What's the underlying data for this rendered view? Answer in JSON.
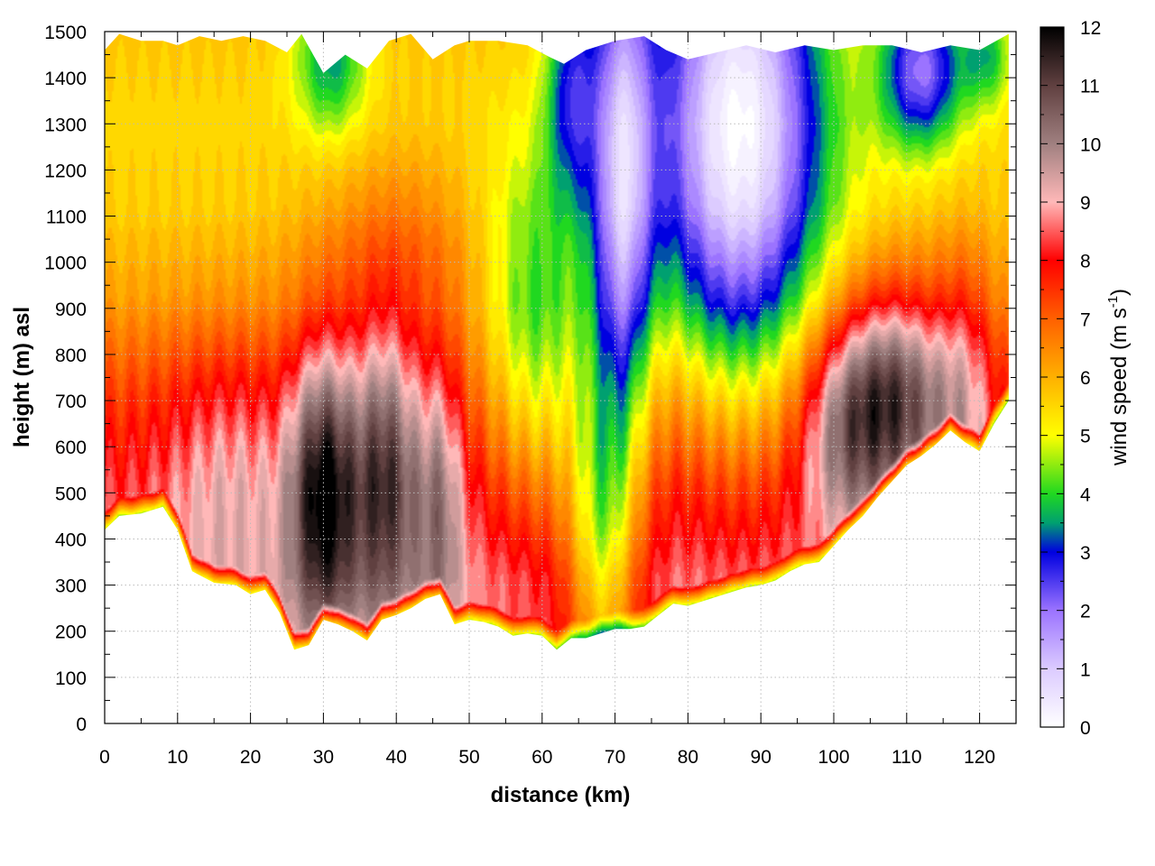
{
  "chart_data": {
    "type": "heatmap",
    "title": "",
    "xlabel": "distance (km)",
    "ylabel": "height (m) asl",
    "xlim": [
      0,
      125
    ],
    "ylim": [
      0,
      1500
    ],
    "x_ticks": [
      "0",
      "10",
      "20",
      "30",
      "40",
      "50",
      "60",
      "70",
      "80",
      "90",
      "100",
      "110",
      "120"
    ],
    "y_ticks": [
      "0",
      "100",
      "200",
      "300",
      "400",
      "500",
      "600",
      "700",
      "800",
      "900",
      "1000",
      "1100",
      "1200",
      "1300",
      "1400",
      "1500"
    ],
    "grid": true,
    "colorbar": {
      "title_main": "wind speed (m s",
      "title_sup": "-1",
      "title_close": ")",
      "range": [
        0,
        12
      ],
      "ticks": [
        "0",
        "1",
        "2",
        "3",
        "4",
        "5",
        "6",
        "7",
        "8",
        "9",
        "10",
        "11",
        "12"
      ],
      "stops": [
        {
          "v": 0,
          "c": "#ffffff"
        },
        {
          "v": 1,
          "c": "#dccbff"
        },
        {
          "v": 2,
          "c": "#9b73ff"
        },
        {
          "v": 3,
          "c": "#0000e0"
        },
        {
          "v": 3.5,
          "c": "#00a070"
        },
        {
          "v": 4,
          "c": "#20d820"
        },
        {
          "v": 5,
          "c": "#ffff00"
        },
        {
          "v": 6,
          "c": "#ffb000"
        },
        {
          "v": 7,
          "c": "#ff6000"
        },
        {
          "v": 8,
          "c": "#ff0000"
        },
        {
          "v": 9,
          "c": "#ffb8b8"
        },
        {
          "v": 10,
          "c": "#a08080"
        },
        {
          "v": 11,
          "c": "#604040"
        },
        {
          "v": 12,
          "c": "#000000"
        }
      ]
    },
    "terrain_m": [
      [
        0,
        420
      ],
      [
        2,
        450
      ],
      [
        5,
        455
      ],
      [
        8,
        470
      ],
      [
        10,
        420
      ],
      [
        12,
        330
      ],
      [
        15,
        305
      ],
      [
        18,
        300
      ],
      [
        20,
        280
      ],
      [
        22,
        290
      ],
      [
        24,
        240
      ],
      [
        26,
        160
      ],
      [
        28,
        170
      ],
      [
        30,
        225
      ],
      [
        32,
        215
      ],
      [
        34,
        200
      ],
      [
        36,
        180
      ],
      [
        38,
        225
      ],
      [
        40,
        235
      ],
      [
        42,
        250
      ],
      [
        44,
        270
      ],
      [
        46,
        280
      ],
      [
        48,
        215
      ],
      [
        50,
        225
      ],
      [
        52,
        220
      ],
      [
        54,
        210
      ],
      [
        56,
        190
      ],
      [
        58,
        195
      ],
      [
        60,
        190
      ],
      [
        62,
        160
      ],
      [
        64,
        185
      ],
      [
        66,
        185
      ],
      [
        68,
        195
      ],
      [
        70,
        205
      ],
      [
        72,
        205
      ],
      [
        74,
        210
      ],
      [
        76,
        235
      ],
      [
        78,
        260
      ],
      [
        80,
        255
      ],
      [
        82,
        265
      ],
      [
        84,
        275
      ],
      [
        86,
        285
      ],
      [
        88,
        295
      ],
      [
        90,
        300
      ],
      [
        92,
        310
      ],
      [
        94,
        330
      ],
      [
        96,
        345
      ],
      [
        98,
        350
      ],
      [
        100,
        385
      ],
      [
        102,
        420
      ],
      [
        104,
        450
      ],
      [
        106,
        490
      ],
      [
        108,
        525
      ],
      [
        110,
        560
      ],
      [
        112,
        580
      ],
      [
        114,
        605
      ],
      [
        116,
        635
      ],
      [
        118,
        610
      ],
      [
        120,
        590
      ],
      [
        122,
        650
      ],
      [
        124,
        700
      ]
    ],
    "top_m": [
      [
        0,
        1460
      ],
      [
        2,
        1495
      ],
      [
        5,
        1480
      ],
      [
        8,
        1480
      ],
      [
        10,
        1470
      ],
      [
        13,
        1490
      ],
      [
        16,
        1480
      ],
      [
        19,
        1490
      ],
      [
        22,
        1480
      ],
      [
        25,
        1455
      ],
      [
        27,
        1495
      ],
      [
        30,
        1410
      ],
      [
        33,
        1450
      ],
      [
        36,
        1420
      ],
      [
        39,
        1480
      ],
      [
        42,
        1495
      ],
      [
        45,
        1440
      ],
      [
        48,
        1470
      ],
      [
        50,
        1480
      ],
      [
        54,
        1480
      ],
      [
        58,
        1470
      ],
      [
        61,
        1445
      ],
      [
        63,
        1430
      ],
      [
        66,
        1460
      ],
      [
        70,
        1480
      ],
      [
        74,
        1490
      ],
      [
        77,
        1460
      ],
      [
        80,
        1440
      ],
      [
        84,
        1455
      ],
      [
        88,
        1470
      ],
      [
        92,
        1455
      ],
      [
        96,
        1470
      ],
      [
        100,
        1460
      ],
      [
        104,
        1470
      ],
      [
        108,
        1470
      ],
      [
        112,
        1455
      ],
      [
        116,
        1470
      ],
      [
        120,
        1460
      ],
      [
        124,
        1495
      ]
    ],
    "field": {
      "base_profile": [
        [
          0,
          8.5
        ],
        [
          120,
          8.7
        ],
        [
          320,
          8.8
        ],
        [
          520,
          8.2
        ],
        [
          720,
          7.3
        ],
        [
          920,
          6.2
        ],
        [
          1120,
          5.6
        ],
        [
          1300,
          5.5
        ],
        [
          1500,
          5.7
        ]
      ],
      "jets": [
        {
          "x": 30,
          "z": 520,
          "sx": 3.2,
          "sz": 220,
          "a": 3.9
        },
        {
          "x": 38.5,
          "z": 560,
          "sx": 3.3,
          "sz": 230,
          "a": 3.2
        },
        {
          "x": 46,
          "z": 500,
          "sx": 2.2,
          "sz": 220,
          "a": 1.8
        },
        {
          "x": 17,
          "z": 560,
          "sx": 6,
          "sz": 200,
          "a": 1.0
        },
        {
          "x": 108,
          "z": 720,
          "sx": 5.5,
          "sz": 160,
          "a": 3.8
        },
        {
          "x": 101,
          "z": 640,
          "sx": 4,
          "sz": 150,
          "a": 1.8
        },
        {
          "x": 118,
          "z": 760,
          "sx": 3,
          "sz": 200,
          "a": 1.5
        },
        {
          "x": 40,
          "z": 1040,
          "sx": 8,
          "sz": 150,
          "a": 1.0
        }
      ],
      "lulls": [
        {
          "x": 87,
          "z": 1300,
          "sx": 8,
          "sz": 420,
          "a": 5.5
        },
        {
          "x": 71,
          "z": 1180,
          "sx": 3,
          "sz": 440,
          "a": 4.2
        },
        {
          "x": 64,
          "z": 1380,
          "sx": 2.5,
          "sz": 180,
          "a": 2.5
        },
        {
          "x": 68,
          "z": 400,
          "sx": 3.5,
          "sz": 260,
          "a": 3.2
        },
        {
          "x": 59,
          "z": 800,
          "sx": 5,
          "sz": 280,
          "a": 2.3
        },
        {
          "x": 112,
          "z": 1420,
          "sx": 4,
          "sz": 120,
          "a": 3.6
        },
        {
          "x": 31,
          "z": 1450,
          "sx": 3.5,
          "sz": 120,
          "a": 2.2
        },
        {
          "x": 121,
          "z": 1450,
          "sx": 2.5,
          "sz": 80,
          "a": 1.8
        }
      ]
    }
  }
}
